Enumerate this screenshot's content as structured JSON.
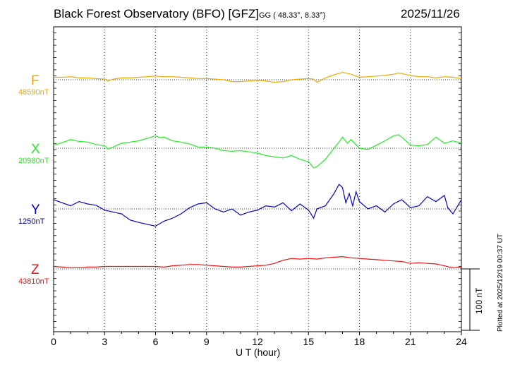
{
  "header": {
    "station": "Black Forest Observatory (BFO)",
    "institute": "[GFZ]",
    "coords": "GG ( 48.33°,   8.33°)",
    "date": "2025/11/26"
  },
  "footer": {
    "plotted": "Plotted at 2025/12/19 00:37 UT",
    "scale": "100 nT"
  },
  "chart_data": {
    "type": "line",
    "xlabel": "U T (hour)",
    "xlim": [
      0,
      24
    ],
    "xticks": [
      0,
      3,
      6,
      9,
      12,
      15,
      18,
      21,
      24
    ],
    "grid": true,
    "scale_bar_nT": 100,
    "series": [
      {
        "name": "F",
        "baseline": "48590nT",
        "color": "#f0a800",
        "x": [
          0,
          0.5,
          1,
          1.5,
          2,
          2.5,
          3,
          3.2,
          3.5,
          4,
          4.5,
          5,
          5.5,
          6,
          6.5,
          7,
          7.5,
          8,
          8.5,
          9,
          9.5,
          10,
          10.5,
          11,
          11.5,
          12,
          12.5,
          13,
          13.5,
          14,
          14.5,
          15,
          15.3,
          15.5,
          16,
          16.5,
          17,
          17.5,
          18,
          18.5,
          19,
          19.5,
          20,
          20.3,
          20.5,
          21,
          21.5,
          22,
          22.5,
          23,
          23.5,
          24
        ],
        "y": [
          4,
          4,
          5,
          3,
          3,
          2,
          1,
          -2,
          1,
          3,
          3,
          4,
          5,
          6,
          5,
          5,
          4,
          3,
          2,
          2,
          1,
          0,
          -3,
          -3,
          -2,
          -1,
          -2,
          -4,
          -3,
          0,
          1,
          2,
          1,
          -4,
          3,
          8,
          12,
          9,
          4,
          5,
          6,
          7,
          9,
          11,
          10,
          7,
          5,
          5,
          3,
          5,
          4,
          2
        ]
      },
      {
        "name": "X",
        "baseline": "20980nT",
        "color": "#22ee22",
        "x": [
          0,
          0.5,
          1,
          1.5,
          2,
          2.5,
          3,
          3.2,
          3.5,
          4,
          4.5,
          5,
          5.5,
          6,
          6.3,
          6.5,
          7,
          7.5,
          8,
          8.5,
          9,
          9.5,
          10,
          10.5,
          11,
          11.5,
          12,
          12.5,
          13,
          13.5,
          14,
          14.5,
          15,
          15.3,
          15.5,
          16,
          16.5,
          16.8,
          17,
          17.3,
          17.5,
          18,
          18.5,
          19,
          19.5,
          20,
          20.3,
          20.5,
          21,
          21.5,
          22,
          22.5,
          23,
          23.5,
          24
        ],
        "y": [
          5,
          9,
          14,
          11,
          10,
          6,
          4,
          -1,
          2,
          8,
          10,
          12,
          16,
          20,
          17,
          18,
          12,
          10,
          7,
          2,
          2,
          0,
          -4,
          -5,
          -4,
          -6,
          -8,
          -12,
          -14,
          -16,
          -12,
          -18,
          -22,
          -32,
          -30,
          -18,
          0,
          10,
          18,
          8,
          14,
          0,
          -2,
          5,
          12,
          20,
          22,
          18,
          5,
          4,
          6,
          18,
          8,
          12,
          8
        ]
      },
      {
        "name": "Y",
        "baseline": "1250nT",
        "color": "#0000cc",
        "x": [
          0,
          0.5,
          1,
          1.5,
          2,
          2.5,
          3,
          3.5,
          4,
          4.5,
          5,
          5.5,
          6,
          6.5,
          7,
          7.5,
          8,
          8.5,
          9,
          9.5,
          10,
          10.5,
          11,
          11.5,
          12,
          12.5,
          13,
          13.5,
          14,
          14.5,
          15,
          15.3,
          15.5,
          16,
          16.5,
          16.8,
          17,
          17.2,
          17.4,
          17.6,
          17.8,
          18,
          18.5,
          19,
          19.5,
          20,
          20.5,
          21,
          21.5,
          22,
          22.5,
          23,
          23.2,
          23.5,
          24
        ],
        "y": [
          15,
          10,
          5,
          12,
          8,
          6,
          -2,
          -5,
          -8,
          -18,
          -22,
          -25,
          -28,
          -20,
          -15,
          -8,
          2,
          8,
          10,
          0,
          -5,
          0,
          -10,
          -5,
          -2,
          5,
          3,
          10,
          -3,
          8,
          -2,
          -15,
          0,
          5,
          25,
          40,
          35,
          10,
          25,
          5,
          28,
          12,
          0,
          5,
          -5,
          8,
          15,
          2,
          5,
          20,
          12,
          22,
          2,
          -8,
          15
        ]
      },
      {
        "name": "Z",
        "baseline": "43810nT",
        "color": "#ee1111",
        "x": [
          0,
          0.5,
          1,
          1.5,
          2,
          2.5,
          3,
          3.5,
          4,
          4.5,
          5,
          5.5,
          6,
          6.5,
          7,
          7.5,
          8,
          8.5,
          9,
          9.5,
          10,
          10.5,
          11,
          11.5,
          12,
          12.5,
          13,
          13.5,
          14,
          14.5,
          15,
          15.5,
          16,
          16.5,
          17,
          17.5,
          18,
          18.5,
          19,
          19.5,
          20,
          20.5,
          21,
          21.5,
          22,
          22.5,
          23,
          23.3,
          23.5,
          24
        ],
        "y": [
          4,
          3,
          2,
          2,
          3,
          3,
          4,
          4,
          4,
          4,
          4,
          4,
          4,
          3,
          5,
          6,
          7,
          7,
          6,
          5,
          4,
          3,
          3,
          4,
          5,
          6,
          9,
          14,
          17,
          16,
          17,
          16,
          18,
          19,
          20,
          18,
          17,
          16,
          15,
          14,
          13,
          12,
          9,
          10,
          9,
          8,
          5,
          3,
          2,
          3
        ]
      }
    ]
  }
}
